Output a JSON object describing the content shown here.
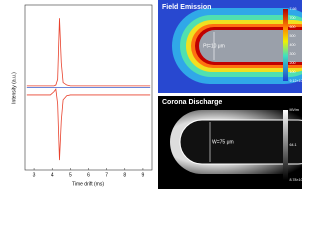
{
  "chart_data": {
    "type": "line",
    "xlabel": "Time drift (ms)",
    "ylabel": "Intensity (a.u.)",
    "x": [
      2.6,
      3,
      3.5,
      3.9,
      4.1,
      4.2,
      4.3,
      4.4,
      4.5,
      4.6,
      4.8,
      5,
      6,
      7,
      8,
      9,
      9.4
    ],
    "xlim": [
      2.5,
      9.5
    ],
    "xticks": [
      3,
      4,
      5,
      6,
      7,
      8,
      9
    ],
    "ylim": [
      -1,
      1
    ],
    "series": [
      {
        "color": "#e8412c",
        "values": [
          0.02,
          0.02,
          0.02,
          0.02,
          0.02,
          0.03,
          0.1,
          0.84,
          0.3,
          0.06,
          0.03,
          0.02,
          0.02,
          0.02,
          0.02,
          0.02,
          0.02
        ]
      },
      {
        "color": "#3a5fcd",
        "values": [
          0,
          0,
          0,
          0,
          0,
          0,
          0,
          0,
          0,
          0,
          0,
          0,
          0,
          0,
          0,
          0,
          0
        ]
      },
      {
        "color": "#e8412c",
        "values": [
          -0.09,
          -0.09,
          -0.09,
          -0.09,
          -0.05,
          -0.02,
          -0.2,
          -0.88,
          -0.4,
          -0.15,
          -0.1,
          -0.09,
          -0.09,
          -0.09,
          -0.09,
          -0.09,
          -0.09
        ]
      }
    ]
  },
  "panels": [
    {
      "title": "Field Emission",
      "label": "Pt=10 μm",
      "colorbar": [
        "7.66",
        "700",
        "600",
        "500",
        "400",
        "300",
        "200",
        "100",
        "9.12×10⁻¹⁷"
      ]
    },
    {
      "title": "Corona Discharge",
      "label": "W=75 μm",
      "colorbar": [
        "MV/m",
        "64.1",
        "8.78×10⁻¹⁷"
      ]
    }
  ]
}
